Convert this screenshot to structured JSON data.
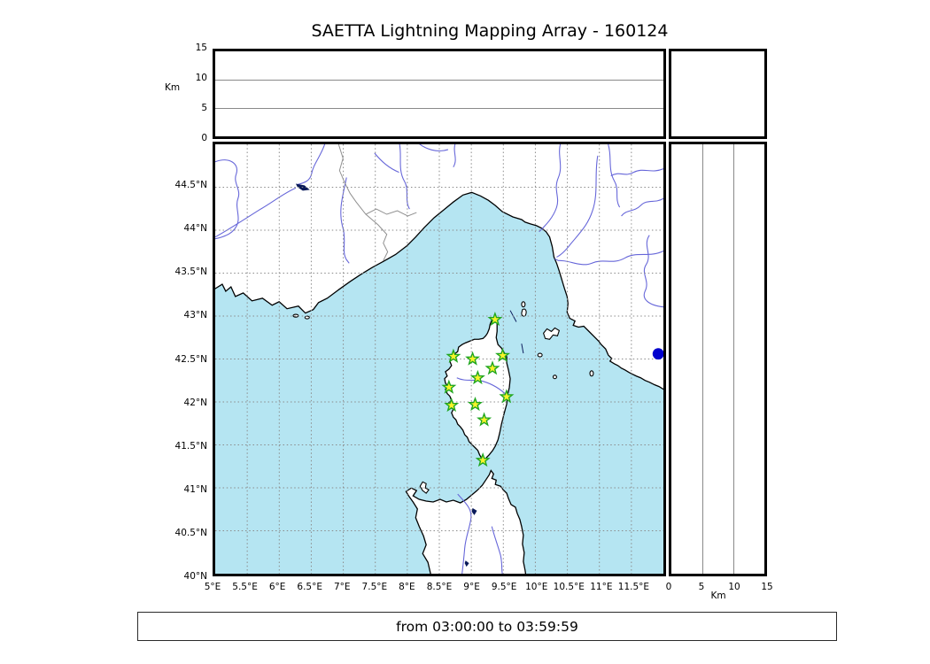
{
  "title": "SAETTA Lightning Mapping Array - 160124",
  "footer": {
    "time_range": "from 03:00:00 to 03:59:59"
  },
  "chart_data": {
    "type": "scatter",
    "title": "SAETTA Lightning Mapping Array - 160124",
    "time_window": {
      "from": "03:00:00",
      "to": "03:59:59"
    },
    "map_panel": {
      "xlim": [
        5,
        12
      ],
      "ylim": [
        40,
        45
      ],
      "lon_ticks": [
        5,
        5.5,
        6,
        6.5,
        7,
        7.5,
        8,
        8.5,
        9,
        9.5,
        10,
        10.5,
        11,
        11.5
      ],
      "lon_tick_labels": [
        "5°E",
        "5.5°E",
        "6°E",
        "6.5°E",
        "7°E",
        "7.5°E",
        "8°E",
        "8.5°E",
        "9°E",
        "9.5°E",
        "10°E",
        "10.5°E",
        "11°E",
        "11.5°E"
      ],
      "lat_ticks": [
        44.5,
        44,
        43.5,
        43,
        42.5,
        42,
        41.5,
        41,
        40.5,
        40
      ],
      "lat_tick_labels": [
        "44.5°N",
        "44°N",
        "43.5°N",
        "43°N",
        "42.5°N",
        "42°N",
        "41.5°N",
        "41°N",
        "40.5°N",
        "40°N"
      ],
      "grid": "dashed"
    },
    "altitude_axis": {
      "label": "Km",
      "lim": [
        0,
        15
      ],
      "tick_values": [
        0,
        5,
        10,
        15
      ],
      "tick_labels": [
        "0",
        "5",
        "10",
        "15"
      ],
      "gridline_values": [
        5,
        10
      ]
    },
    "lma_stations": [
      {
        "lon": 9.37,
        "lat": 42.96
      },
      {
        "lon": 8.72,
        "lat": 42.53
      },
      {
        "lon": 9.02,
        "lat": 42.5
      },
      {
        "lon": 9.49,
        "lat": 42.54
      },
      {
        "lon": 9.33,
        "lat": 42.39
      },
      {
        "lon": 9.1,
        "lat": 42.28
      },
      {
        "lon": 8.65,
        "lat": 42.17
      },
      {
        "lon": 9.55,
        "lat": 42.06
      },
      {
        "lon": 8.69,
        "lat": 41.96
      },
      {
        "lon": 9.06,
        "lat": 41.97
      },
      {
        "lon": 9.2,
        "lat": 41.79
      },
      {
        "lon": 9.18,
        "lat": 41.32
      }
    ],
    "lightning_points": [
      {
        "lon": 11.92,
        "lat": 42.56
      }
    ],
    "legend_position": "none",
    "colors": {
      "sea": "#b5e5f2",
      "land": "#ffffff",
      "coastline": "#000000",
      "rivers": "#6666d9",
      "country_border": "#8f8f8f",
      "grid": "#8a8a8a",
      "station_fill": "#f8f32b",
      "station_edge": "#1fa61f",
      "lightning_point": "#0000cd",
      "lake": "#0a1a5a"
    }
  }
}
